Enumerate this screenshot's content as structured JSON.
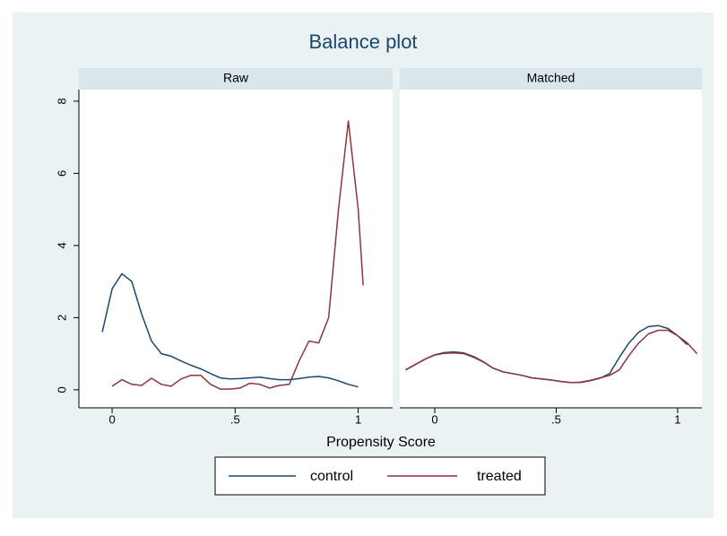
{
  "title": "Balance plot",
  "xlabel": "Propensity Score",
  "chart_data": [
    {
      "type": "line",
      "title": "Raw",
      "x": [
        -0.04,
        0,
        0.04,
        0.08,
        0.12,
        0.16,
        0.2,
        0.24,
        0.28,
        0.32,
        0.36,
        0.4,
        0.44,
        0.48,
        0.52,
        0.56,
        0.6,
        0.64,
        0.68,
        0.72,
        0.76,
        0.8,
        0.84,
        0.88,
        0.92,
        0.96,
        1.0,
        1.02
      ],
      "series": [
        {
          "name": "control",
          "color": "#1a476f",
          "values": [
            1.6,
            2.8,
            3.22,
            3.0,
            2.1,
            1.35,
            1.0,
            0.93,
            0.8,
            0.68,
            0.58,
            0.45,
            0.33,
            0.3,
            0.31,
            0.33,
            0.35,
            0.31,
            0.28,
            0.28,
            0.31,
            0.35,
            0.37,
            0.33,
            0.25,
            0.15,
            0.08,
            null
          ]
        },
        {
          "name": "treated",
          "color": "#90353b",
          "values": [
            null,
            0.1,
            0.28,
            0.15,
            0.12,
            0.32,
            0.15,
            0.1,
            0.3,
            0.4,
            0.4,
            0.15,
            0.02,
            0.02,
            0.05,
            0.18,
            0.15,
            0.05,
            0.12,
            0.15,
            0.8,
            1.35,
            1.3,
            2.0,
            5.0,
            7.45,
            5.0,
            2.9
          ]
        }
      ],
      "xlim": [
        -0.135,
        1.14
      ],
      "xticks": [
        0,
        {
          "value": 0.5,
          "label": ".5"
        },
        1
      ],
      "ylim": [
        -0.5,
        8.32
      ],
      "yticks": [
        0,
        2,
        4,
        6,
        8
      ]
    },
    {
      "type": "line",
      "title": "Matched",
      "x": [
        -0.12,
        -0.08,
        -0.04,
        0,
        0.04,
        0.08,
        0.12,
        0.16,
        0.2,
        0.24,
        0.28,
        0.32,
        0.36,
        0.4,
        0.44,
        0.48,
        0.52,
        0.56,
        0.6,
        0.64,
        0.68,
        0.72,
        0.76,
        0.8,
        0.84,
        0.88,
        0.92,
        0.96,
        1.0,
        1.04,
        1.08
      ],
      "series": [
        {
          "name": "control",
          "color": "#1a476f",
          "values": [
            0.55,
            0.7,
            0.85,
            0.97,
            1.03,
            1.05,
            1.02,
            0.92,
            0.78,
            0.6,
            0.5,
            0.45,
            0.4,
            0.33,
            0.3,
            0.27,
            0.23,
            0.2,
            0.2,
            0.25,
            0.32,
            0.45,
            0.9,
            1.3,
            1.6,
            1.75,
            1.78,
            1.7,
            1.5,
            1.25,
            null
          ]
        },
        {
          "name": "treated",
          "color": "#90353b",
          "values": [
            0.55,
            0.7,
            0.85,
            0.96,
            1.01,
            1.02,
            1.0,
            0.9,
            0.77,
            0.6,
            0.5,
            0.45,
            0.4,
            0.33,
            0.3,
            0.27,
            0.23,
            0.2,
            0.21,
            0.26,
            0.33,
            0.4,
            0.55,
            0.95,
            1.3,
            1.55,
            1.65,
            1.65,
            1.5,
            1.3,
            1.0
          ]
        }
      ],
      "xlim": [
        -0.144,
        1.1
      ],
      "xticks": [
        0,
        {
          "value": 0.5,
          "label": ".5"
        },
        1
      ],
      "ylim": [
        -0.5,
        8.32
      ],
      "yticks": [
        0,
        2,
        4,
        6,
        8
      ]
    }
  ]
}
